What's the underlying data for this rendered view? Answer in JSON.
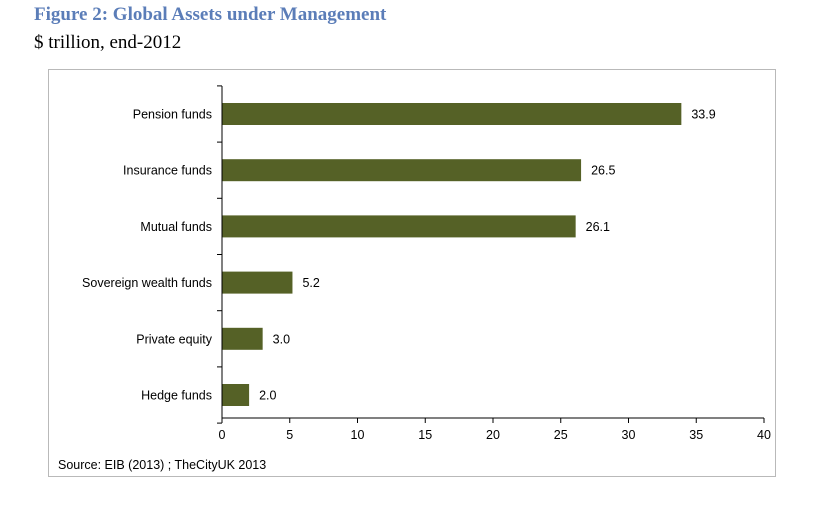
{
  "figure": {
    "title": "Figure 2: Global Assets under Management",
    "subtitle": "$ trillion, end-2012",
    "source": "Source: EIB (2013) ;  TheCityUK 2013"
  },
  "chart_data": {
    "type": "bar",
    "orientation": "horizontal",
    "categories": [
      "Pension funds",
      "Insurance funds",
      "Mutual funds",
      "Sovereign wealth funds",
      "Private equity",
      "Hedge funds"
    ],
    "values": [
      33.9,
      26.5,
      26.1,
      5.2,
      3.0,
      2.0
    ],
    "value_labels": [
      "33.9",
      "26.5",
      "26.1",
      "5.2",
      "3.0",
      "2.0"
    ],
    "title": "Figure 2: Global Assets under Management",
    "subtitle": "$ trillion, end-2012",
    "xlim": [
      0,
      40
    ],
    "xticks": [
      0,
      5,
      10,
      15,
      20,
      25,
      30,
      35,
      40
    ],
    "xtick_labels": [
      "0",
      "5",
      "10",
      "15",
      "20",
      "25",
      "30",
      "35",
      "40"
    ],
    "grid": false,
    "bar_color": "#556126"
  }
}
